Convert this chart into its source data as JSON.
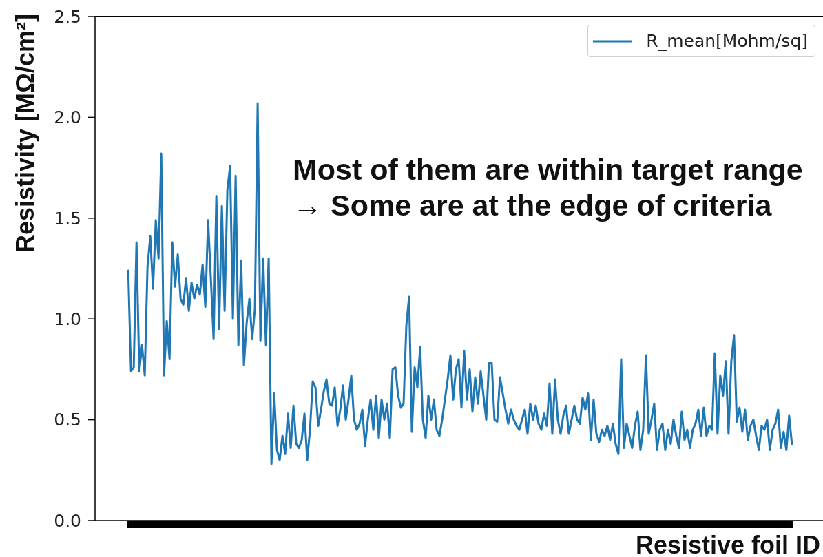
{
  "chart_data": {
    "type": "line",
    "xlabel": "Resistive foil ID",
    "ylabel": "Resistivity [MΩ/cm²]",
    "annotations": [
      "Most of them are within target range",
      "→ Some are at the edge of criteria"
    ],
    "categories": [
      null,
      null,
      null,
      null,
      null,
      null,
      null,
      null,
      null,
      null,
      null,
      null,
      null,
      null,
      null,
      null,
      null,
      null,
      null,
      null,
      null,
      null,
      null,
      null,
      null,
      null,
      null,
      null,
      null,
      null,
      null,
      null,
      null,
      null,
      null,
      null,
      null,
      null,
      null,
      null,
      null,
      null,
      null,
      null,
      null,
      null,
      null,
      null,
      null,
      null,
      null,
      null,
      null,
      null,
      null,
      null,
      null,
      null,
      null,
      null,
      null,
      null,
      null,
      null,
      null,
      null,
      null,
      null,
      null,
      null,
      null,
      null,
      null,
      null,
      null,
      null,
      null,
      null,
      null,
      null,
      null,
      null,
      null,
      null,
      null,
      null,
      null,
      null,
      null,
      null,
      null,
      null,
      null,
      null,
      null,
      null,
      null,
      null,
      null,
      null,
      null,
      null,
      null,
      null,
      null,
      null,
      null,
      null,
      null,
      null,
      null,
      null,
      null,
      null,
      null,
      null,
      null,
      null,
      null,
      null,
      null,
      null,
      null,
      null,
      null,
      null,
      null,
      null,
      null,
      null,
      null,
      null,
      null,
      null,
      null,
      null,
      null,
      null,
      null,
      null,
      null,
      null,
      null,
      null,
      null,
      null,
      null,
      null,
      null,
      null,
      null,
      null,
      null,
      null,
      null,
      null,
      null,
      null,
      null,
      null,
      null,
      null,
      null,
      null,
      null,
      null,
      null,
      null,
      null,
      null,
      null,
      null,
      null,
      null,
      null,
      null,
      null,
      null,
      null,
      null,
      null,
      null,
      null,
      null,
      null,
      null,
      null,
      null,
      null,
      null,
      null,
      null,
      null,
      null,
      null,
      null,
      null,
      null,
      null,
      null,
      null,
      null,
      null,
      null,
      null,
      null,
      null,
      null,
      null,
      null,
      null,
      null,
      null,
      null,
      null,
      null,
      null,
      null,
      null,
      null,
      null,
      null,
      null,
      null,
      null,
      null,
      null,
      null,
      null,
      null,
      null,
      null,
      null,
      null,
      null,
      null,
      null,
      null,
      null,
      null,
      null,
      null
    ],
    "series": [
      {
        "name": "R_mean[Mohm/sq]",
        "color": "#1f77b4",
        "values": [
          1.24,
          0.74,
          0.76,
          1.38,
          0.74,
          0.87,
          0.72,
          1.26,
          1.41,
          1.15,
          1.49,
          1.3,
          1.82,
          0.72,
          0.99,
          0.8,
          1.38,
          1.16,
          1.32,
          1.1,
          1.07,
          1.2,
          1.04,
          1.18,
          1.1,
          1.17,
          1.12,
          1.27,
          1.06,
          1.49,
          1.2,
          0.9,
          1.61,
          0.95,
          1.56,
          1.04,
          1.64,
          1.76,
          1.0,
          1.71,
          0.87,
          1.29,
          0.77,
          0.98,
          1.1,
          0.9,
          1.05,
          2.07,
          0.89,
          1.3,
          0.87,
          1.3,
          0.28,
          0.63,
          0.35,
          0.3,
          0.42,
          0.33,
          0.53,
          0.36,
          0.57,
          0.38,
          0.36,
          0.4,
          0.53,
          0.3,
          0.45,
          0.69,
          0.66,
          0.47,
          0.55,
          0.64,
          0.7,
          0.58,
          0.57,
          0.66,
          0.47,
          0.55,
          0.67,
          0.5,
          0.6,
          0.72,
          0.5,
          0.45,
          0.48,
          0.55,
          0.37,
          0.5,
          0.6,
          0.45,
          0.62,
          0.41,
          0.6,
          0.5,
          0.58,
          0.41,
          0.75,
          0.76,
          0.62,
          0.56,
          0.58,
          0.97,
          1.11,
          0.44,
          0.76,
          0.66,
          0.86,
          0.5,
          0.41,
          0.62,
          0.5,
          0.6,
          0.45,
          0.42,
          0.5,
          0.6,
          0.7,
          0.82,
          0.6,
          0.75,
          0.8,
          0.56,
          0.84,
          0.6,
          0.75,
          0.54,
          0.71,
          0.58,
          0.74,
          0.62,
          0.5,
          0.78,
          0.78,
          0.5,
          0.49,
          0.71,
          0.63,
          0.55,
          0.48,
          0.55,
          0.5,
          0.47,
          0.45,
          0.5,
          0.55,
          0.43,
          0.58,
          0.5,
          0.57,
          0.48,
          0.45,
          0.53,
          0.47,
          0.68,
          0.43,
          0.7,
          0.5,
          0.43,
          0.52,
          0.57,
          0.43,
          0.5,
          0.57,
          0.5,
          0.48,
          0.61,
          0.55,
          0.63,
          0.4,
          0.6,
          0.43,
          0.39,
          0.45,
          0.42,
          0.47,
          0.4,
          0.48,
          0.38,
          0.33,
          0.8,
          0.36,
          0.48,
          0.42,
          0.36,
          0.47,
          0.54,
          0.35,
          0.45,
          0.82,
          0.43,
          0.5,
          0.58,
          0.35,
          0.45,
          0.48,
          0.35,
          0.45,
          0.38,
          0.5,
          0.42,
          0.36,
          0.54,
          0.4,
          0.45,
          0.36,
          0.45,
          0.48,
          0.55,
          0.42,
          0.56,
          0.42,
          0.47,
          0.45,
          0.83,
          0.43,
          0.72,
          0.62,
          0.79,
          0.43,
          0.79,
          0.92,
          0.49,
          0.56,
          0.44,
          0.55,
          0.4,
          0.47,
          0.5,
          0.42,
          0.35,
          0.47,
          0.45,
          0.5,
          0.35,
          0.45,
          0.48,
          0.55,
          0.36,
          0.44,
          0.35,
          0.52,
          0.38
        ]
      }
    ],
    "ylim": [
      0,
      2.5
    ],
    "yticks": [
      {
        "value": 0,
        "label": "0.0"
      },
      0.5,
      {
        "value": 1,
        "label": "1.0"
      },
      1.5,
      {
        "value": 2,
        "label": "2.0"
      },
      2.5
    ],
    "tick_labels": "y",
    "legend": "top right",
    "marker": "none",
    "line_style": "solid"
  }
}
